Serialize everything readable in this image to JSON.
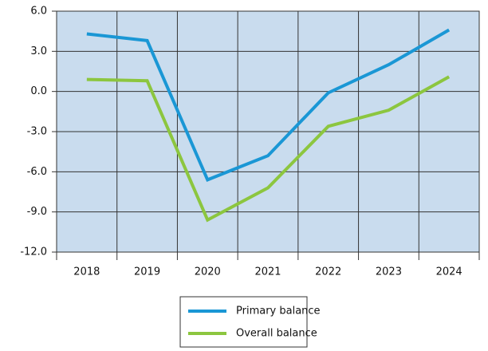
{
  "chart_data": {
    "type": "line",
    "categories": [
      "2018",
      "2019",
      "2020",
      "2021",
      "2022",
      "2023",
      "2024"
    ],
    "series": [
      {
        "name": "Primary balance",
        "color": "#1a97d5",
        "values": [
          4.3,
          3.8,
          -6.6,
          -4.8,
          -0.1,
          2.0,
          4.6
        ]
      },
      {
        "name": "Overall balance",
        "color": "#8cc63f",
        "values": [
          0.9,
          0.8,
          -9.6,
          -7.2,
          -2.6,
          -1.4,
          1.1
        ]
      }
    ],
    "ylim": [
      -12,
      6
    ],
    "yticks": [
      {
        "value": -12,
        "label": "-12.0"
      },
      {
        "value": -9,
        "label": "-9.0"
      },
      {
        "value": -6,
        "label": "-6.0"
      },
      {
        "value": -3,
        "label": "-3.0"
      },
      {
        "value": 0,
        "label": "0.0"
      },
      {
        "value": 3,
        "label": "3.0"
      },
      {
        "value": 6,
        "label": "6.0"
      }
    ],
    "grid": true,
    "legend": "bottom"
  }
}
